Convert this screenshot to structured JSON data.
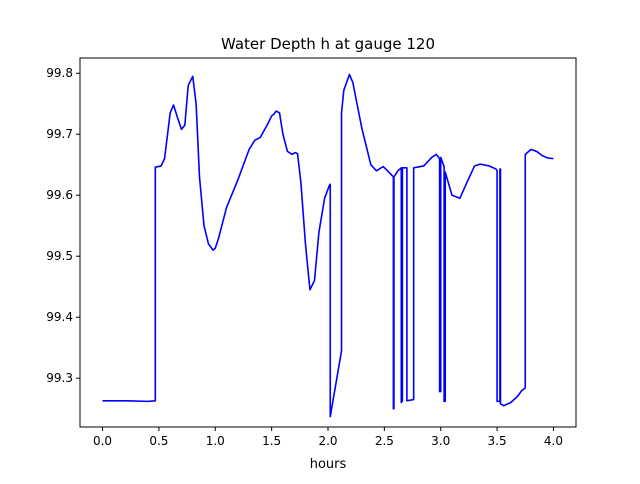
{
  "chart_data": {
    "type": "line",
    "title": "Water Depth h at gauge 120",
    "xlabel": "hours",
    "ylabel": "",
    "xlim": [
      -0.2,
      4.2
    ],
    "ylim": [
      99.22,
      99.825
    ],
    "xticks": [
      "0.0",
      "0.5",
      "1.0",
      "1.5",
      "2.0",
      "2.5",
      "3.0",
      "3.5",
      "4.0"
    ],
    "xtick_values": [
      0.0,
      0.5,
      1.0,
      1.5,
      2.0,
      2.5,
      3.0,
      3.5,
      4.0
    ],
    "yticks": [
      "99.3",
      "99.4",
      "99.5",
      "99.6",
      "99.7",
      "99.8"
    ],
    "ytick_values": [
      99.3,
      99.4,
      99.5,
      99.6,
      99.7,
      99.8
    ],
    "grid": false,
    "legend": "none",
    "series": [
      {
        "color": "#0000ff",
        "x": [
          0.0,
          0.2,
          0.4,
          0.468,
          0.468,
          0.52,
          0.55,
          0.6,
          0.63,
          0.66,
          0.7,
          0.73,
          0.76,
          0.8,
          0.83,
          0.86,
          0.9,
          0.94,
          0.98,
          1.0,
          1.03,
          1.1,
          1.2,
          1.3,
          1.35,
          1.4,
          1.46,
          1.5,
          1.52,
          1.54,
          1.57,
          1.6,
          1.64,
          1.68,
          1.71,
          1.73,
          1.76,
          1.8,
          1.84,
          1.88,
          1.92,
          1.97,
          2.01,
          2.02,
          2.02,
          2.12,
          2.12,
          2.14,
          2.19,
          2.22,
          2.3,
          2.38,
          2.43,
          2.49,
          2.55,
          2.58,
          2.58,
          2.585,
          2.585,
          2.62,
          2.65,
          2.65,
          2.66,
          2.66,
          2.68,
          2.7,
          2.7,
          2.76,
          2.76,
          2.85,
          2.92,
          2.96,
          2.99,
          2.99,
          3.0,
          3.0,
          3.03,
          3.03,
          3.04,
          3.04,
          3.1,
          3.17,
          3.23,
          3.3,
          3.35,
          3.43,
          3.49,
          3.5,
          3.5,
          3.525,
          3.525,
          3.53,
          3.53,
          3.56,
          3.62,
          3.68,
          3.72,
          3.75,
          3.75,
          3.8,
          3.85,
          3.9,
          3.95,
          4.0
        ],
        "y": [
          99.263,
          99.263,
          99.262,
          99.263,
          99.646,
          99.648,
          99.66,
          99.735,
          99.748,
          99.73,
          99.708,
          99.715,
          99.78,
          99.795,
          99.75,
          99.63,
          99.55,
          99.52,
          99.51,
          99.513,
          99.53,
          99.58,
          99.625,
          99.675,
          99.69,
          99.695,
          99.715,
          99.73,
          99.733,
          99.738,
          99.735,
          99.7,
          99.672,
          99.667,
          99.67,
          99.668,
          99.62,
          99.52,
          99.445,
          99.46,
          99.54,
          99.595,
          99.615,
          99.618,
          99.237,
          99.345,
          99.735,
          99.772,
          99.798,
          99.785,
          99.71,
          99.65,
          99.64,
          99.647,
          99.636,
          99.63,
          99.25,
          99.25,
          99.63,
          99.64,
          99.645,
          99.26,
          99.263,
          99.645,
          99.645,
          99.645,
          99.263,
          99.265,
          99.645,
          99.648,
          99.662,
          99.667,
          99.66,
          99.278,
          99.278,
          99.662,
          99.647,
          99.262,
          99.262,
          99.638,
          99.6,
          99.595,
          99.62,
          99.648,
          99.651,
          99.648,
          99.643,
          99.64,
          99.262,
          99.262,
          99.643,
          99.643,
          99.258,
          99.255,
          99.26,
          99.27,
          99.28,
          99.284,
          99.667,
          99.675,
          99.672,
          99.665,
          99.661,
          99.66
        ]
      }
    ]
  }
}
